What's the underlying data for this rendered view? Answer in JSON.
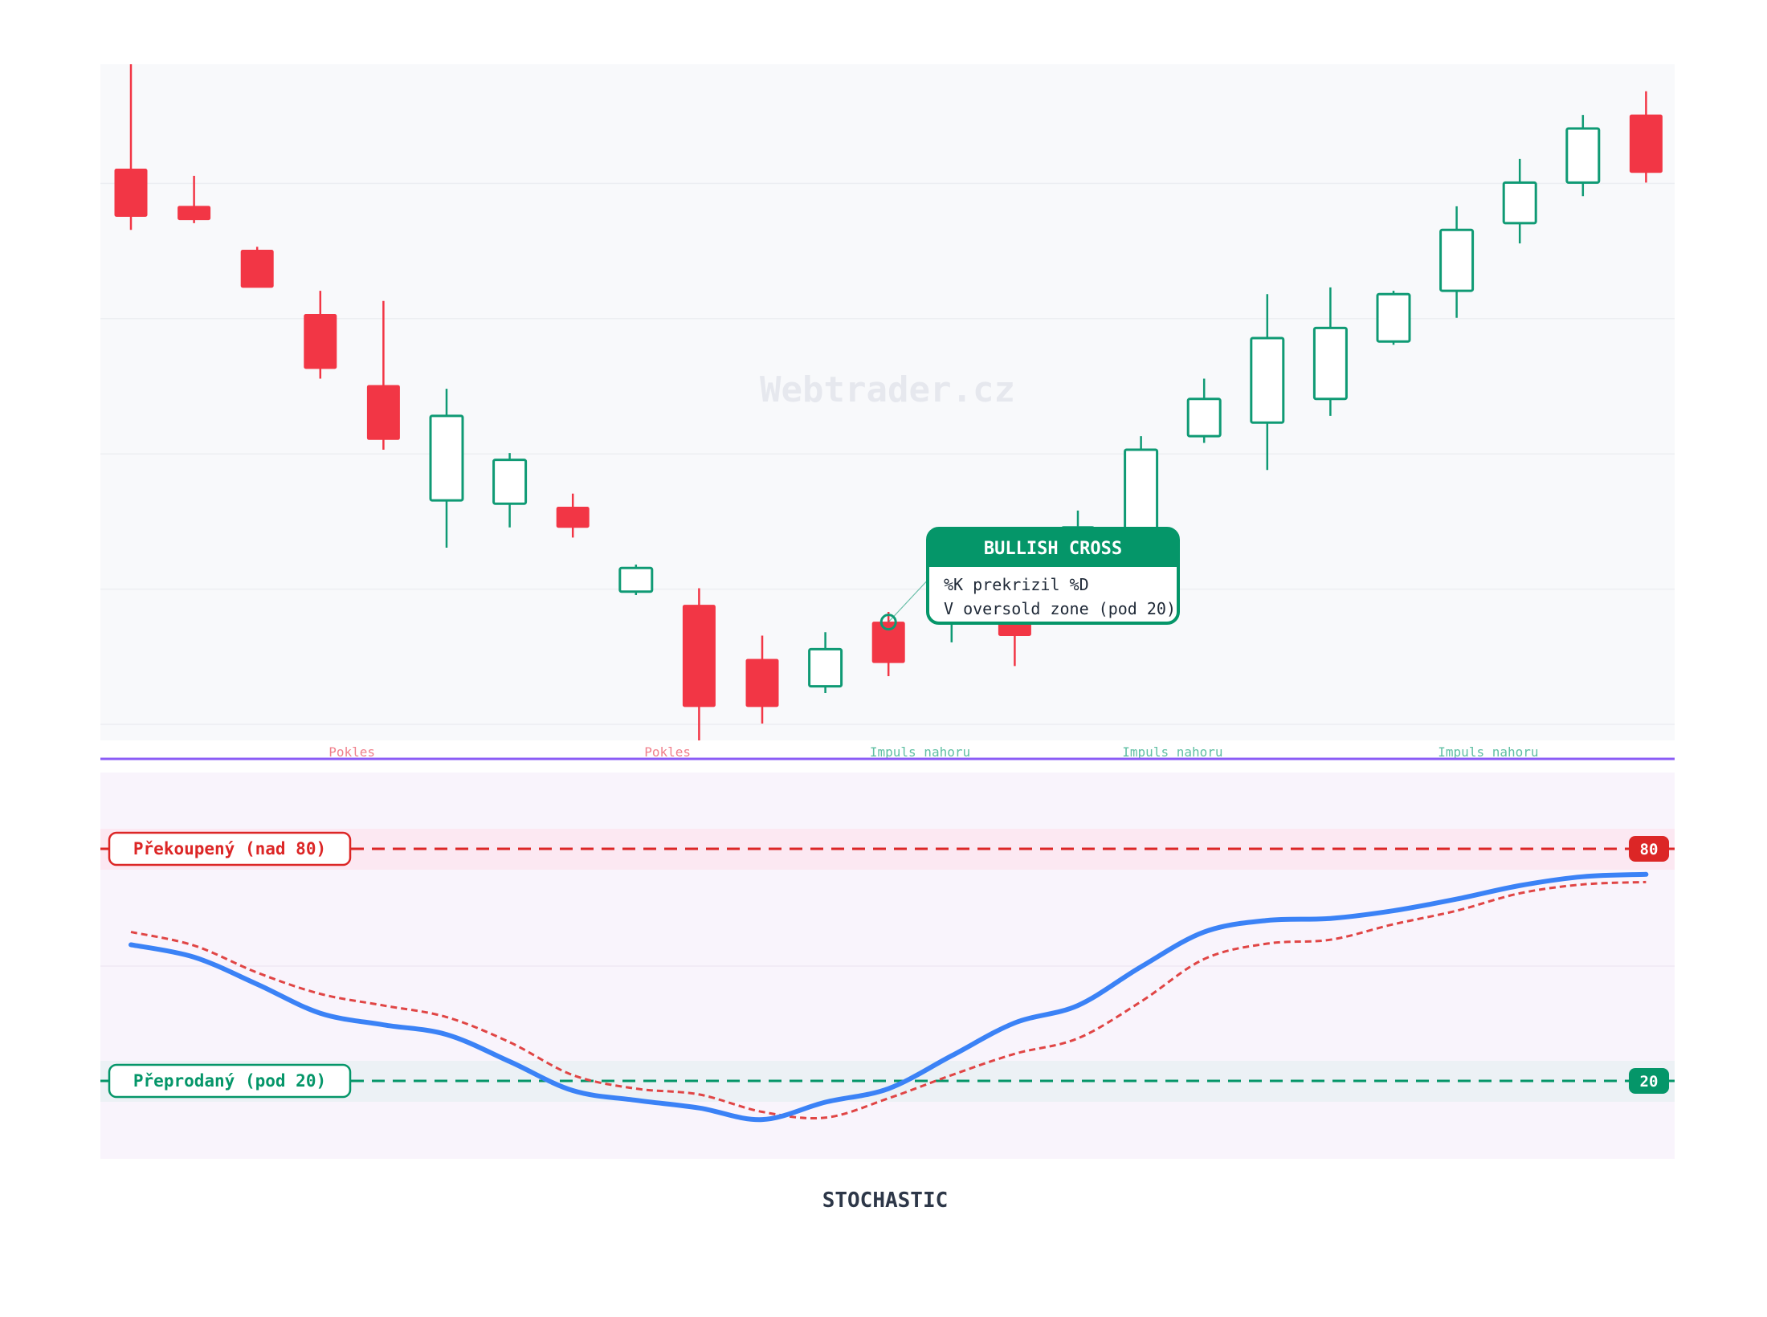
{
  "watermark": "Webtrader.cz",
  "colors": {
    "bull": "#0f9a74",
    "bear": "#f23645",
    "k_line": "#3b82f6",
    "d_line": "#e04545",
    "separator": "#8b5cf6",
    "overbought": "#dc2626",
    "oversold": "#059669",
    "annotation_bear": "#f07f8b",
    "annotation_bull": "#5fbfa3"
  },
  "callout": {
    "title": "BULLISH CROSS",
    "line1": "%K prekrizil %D",
    "line2": "V oversold zone (pod 20)"
  },
  "indicator": {
    "title": "STOCHASTIC",
    "overbought_label": "Překoupený (nad 80)",
    "oversold_label": "Přeprodaný (pod 20)",
    "overbought_value": "80",
    "oversold_value": "20"
  },
  "chart_data": [
    {
      "type": "candlestick",
      "ylim": [
        0,
        100
      ],
      "grid": true,
      "candles": [
        {
          "o": 84.5,
          "h": 100.0,
          "l": 75.5,
          "c": 77.5
        },
        {
          "o": 79.0,
          "h": 83.5,
          "l": 76.5,
          "c": 77.0
        },
        {
          "o": 72.5,
          "h": 73.0,
          "l": 67.0,
          "c": 67.0
        },
        {
          "o": 63.0,
          "h": 66.5,
          "l": 53.5,
          "c": 55.0
        },
        {
          "o": 52.5,
          "h": 65.0,
          "l": 43.0,
          "c": 44.5
        },
        {
          "o": 35.5,
          "h": 52.0,
          "l": 28.5,
          "c": 48.0
        },
        {
          "o": 35.0,
          "h": 42.5,
          "l": 31.5,
          "c": 41.5
        },
        {
          "o": 34.5,
          "h": 36.5,
          "l": 30.0,
          "c": 31.5
        },
        {
          "o": 22.0,
          "h": 26.0,
          "l": 21.5,
          "c": 25.5
        },
        {
          "o": 20.0,
          "h": 22.5,
          "l": 0.0,
          "c": 5.0
        },
        {
          "o": 12.0,
          "h": 15.5,
          "l": 2.5,
          "c": 5.0
        },
        {
          "o": 8.0,
          "h": 16.0,
          "l": 7.0,
          "c": 13.5
        },
        {
          "o": 17.5,
          "h": 19.0,
          "l": 9.5,
          "c": 11.5
        },
        {
          "o": 17.5,
          "h": 23.0,
          "l": 14.5,
          "c": 20.0
        },
        {
          "o": 19.5,
          "h": 23.0,
          "l": 11.0,
          "c": 15.5
        },
        {
          "o": 25.0,
          "h": 34.0,
          "l": 23.0,
          "c": 31.5
        },
        {
          "o": 27.0,
          "h": 45.0,
          "l": 25.0,
          "c": 43.0
        },
        {
          "o": 45.0,
          "h": 53.5,
          "l": 44.0,
          "c": 50.5
        },
        {
          "o": 47.0,
          "h": 66.0,
          "l": 40.0,
          "c": 59.5
        },
        {
          "o": 50.5,
          "h": 67.0,
          "l": 48.0,
          "c": 61.0
        },
        {
          "o": 59.0,
          "h": 66.5,
          "l": 58.5,
          "c": 66.0
        },
        {
          "o": 66.5,
          "h": 79.0,
          "l": 62.5,
          "c": 75.5
        },
        {
          "o": 76.5,
          "h": 86.0,
          "l": 73.5,
          "c": 82.5
        },
        {
          "o": 82.5,
          "h": 92.5,
          "l": 80.5,
          "c": 90.5
        },
        {
          "o": 92.5,
          "h": 96.0,
          "l": 82.5,
          "c": 84.0
        }
      ],
      "annotations": [
        {
          "text": "Pokles",
          "index": 3.5,
          "kind": "bear"
        },
        {
          "text": "Pokles",
          "index": 8.5,
          "kind": "bear"
        },
        {
          "text": "Impuls nahoru",
          "index": 12.5,
          "kind": "bull"
        },
        {
          "text": "Impuls nahoru",
          "index": 16.5,
          "kind": "bull"
        },
        {
          "text": "Impuls nahoru",
          "index": 21.5,
          "kind": "bull"
        }
      ],
      "cross_index": 12
    },
    {
      "type": "line",
      "ylim": [
        0,
        100
      ],
      "levels": [
        80,
        20
      ],
      "series": [
        {
          "key": "k",
          "values": [
            55.2,
            52.0,
            45.0,
            37.5,
            34.5,
            32.0,
            25.0,
            17.5,
            15.0,
            13.0,
            10.0,
            14.5,
            18.0,
            26.5,
            35.0,
            39.5,
            49.5,
            58.5,
            61.5,
            62.0,
            64.0,
            67.0,
            70.5,
            72.8,
            73.4
          ]
        },
        {
          "key": "d",
          "values": [
            58.5,
            55.0,
            48.0,
            42.5,
            39.5,
            36.5,
            30.0,
            21.5,
            18.0,
            16.5,
            12.0,
            10.5,
            15.5,
            21.5,
            27.0,
            31.0,
            40.5,
            51.5,
            55.5,
            56.5,
            60.5,
            64.0,
            68.5,
            70.8,
            71.4
          ]
        }
      ]
    }
  ]
}
